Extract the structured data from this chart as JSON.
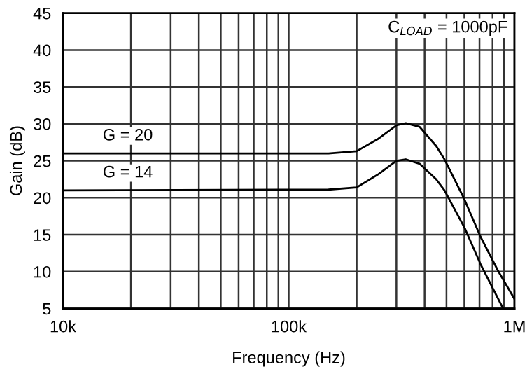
{
  "chart_data": {
    "type": "line",
    "xlabel": "Frequency (Hz)",
    "ylabel": "Gain (dB)",
    "log": "x",
    "grid": true,
    "marker": "none",
    "line_style": "solid",
    "xlim": [
      10000,
      1000000
    ],
    "ylim": [
      5,
      45
    ],
    "xticks": [
      {
        "value": 10000,
        "label": "10k"
      },
      {
        "value": 20000,
        "label": null
      },
      {
        "value": 30000,
        "label": null
      },
      {
        "value": 40000,
        "label": null
      },
      {
        "value": 50000,
        "label": null
      },
      {
        "value": 60000,
        "label": null
      },
      {
        "value": 70000,
        "label": null
      },
      {
        "value": 80000,
        "label": null
      },
      {
        "value": 90000,
        "label": null
      },
      {
        "value": 100000,
        "label": "100k"
      },
      {
        "value": 200000,
        "label": null
      },
      {
        "value": 300000,
        "label": null
      },
      {
        "value": 400000,
        "label": null
      },
      {
        "value": 500000,
        "label": null
      },
      {
        "value": 600000,
        "label": null
      },
      {
        "value": 700000,
        "label": null
      },
      {
        "value": 800000,
        "label": null
      },
      {
        "value": 900000,
        "label": null
      },
      {
        "value": 1000000,
        "label": "1M"
      }
    ],
    "yticks": [
      5,
      10,
      15,
      20,
      25,
      30,
      35,
      40,
      45
    ],
    "annotations": [
      "C$_{LOAD}$ = 1000pF"
    ],
    "series": [
      {
        "name": "G = 20",
        "color": "#000000",
        "x": [
          10000,
          150000,
          200000,
          250000,
          300000,
          330000,
          380000,
          450000,
          490000,
          600000,
          708000,
          850000,
          1000000
        ],
        "values": [
          26,
          26,
          26.3,
          28,
          29.8,
          30.1,
          29.6,
          27,
          25.2,
          19.8,
          14.7,
          10,
          6.3
        ]
      },
      {
        "name": "G = 14",
        "color": "#000000",
        "x": [
          10000,
          150000,
          200000,
          250000,
          300000,
          330000,
          380000,
          450000,
          490000,
          600000,
          708000,
          891000
        ],
        "values": [
          21,
          21.1,
          21.4,
          23.2,
          25,
          25.2,
          24.6,
          22.5,
          21,
          16,
          11,
          5
        ]
      }
    ]
  }
}
